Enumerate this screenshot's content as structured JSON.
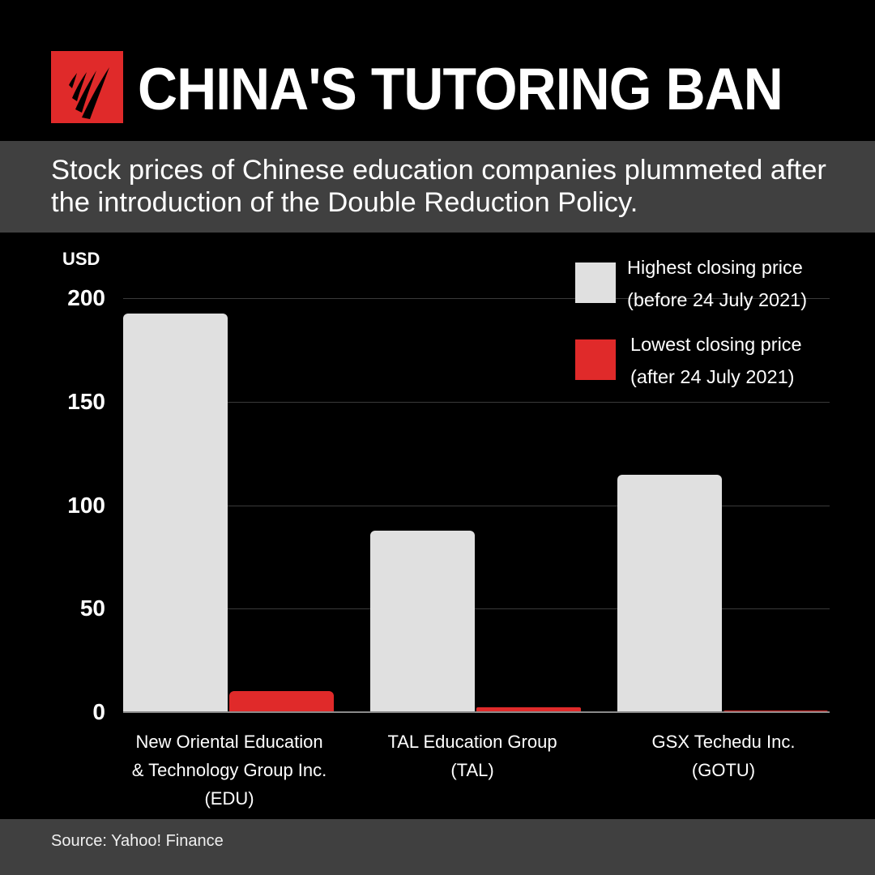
{
  "header": {
    "logo": "sbs-logo-icon",
    "title": "CHINA'S TUTORING BAN"
  },
  "subtitle": "Stock prices of Chinese education companies plummeted after the introduction of the Double Reduction Policy.",
  "footer": {
    "source": "Source: Yahoo! Finance"
  },
  "colors": {
    "background": "#000000",
    "band": "#404040",
    "accent_red": "#e02a2a",
    "bar_light": "#e0e0e0"
  },
  "chart_data": {
    "type": "bar",
    "title": "CHINA'S TUTORING BAN",
    "subtitle": "Stock prices of Chinese education companies plummeted after the introduction of the Double Reduction Policy.",
    "xlabel": "",
    "ylabel": "USD",
    "ylim": [
      0,
      200
    ],
    "yticks": [
      0,
      50,
      100,
      150,
      200
    ],
    "grid": true,
    "legend_position": "top-right",
    "categories": [
      "New Oriental Education\n& Technology Group Inc.\n(EDU)",
      "TAL Education Group\n(TAL)",
      "GSX Techedu Inc.\n(GOTU)"
    ],
    "series": [
      {
        "name": "Highest closing price (before 24 July 2021)",
        "color": "#e0e0e0",
        "values": [
          192.6,
          87.7,
          114.7
        ]
      },
      {
        "name": "Lowest closing price (after 24 July 2021)",
        "color": "#e02a2a",
        "values": [
          10.2,
          2.3,
          0.8
        ]
      }
    ],
    "source": "Source: Yahoo! Finance"
  },
  "axis": {
    "unit": "USD",
    "ticks": [
      "200",
      "150",
      "100",
      "50",
      "0"
    ]
  },
  "legend": [
    {
      "label": "Highest closing price\n(before 24 July 2021)"
    },
    {
      "label": "Lowest closing price\n(after 24 July 2021)"
    }
  ],
  "labels": [
    "New Oriental Education\n& Technology Group Inc.\n(EDU)",
    "TAL Education Group\n(TAL)",
    "GSX Techedu Inc.\n(GOTU)"
  ]
}
